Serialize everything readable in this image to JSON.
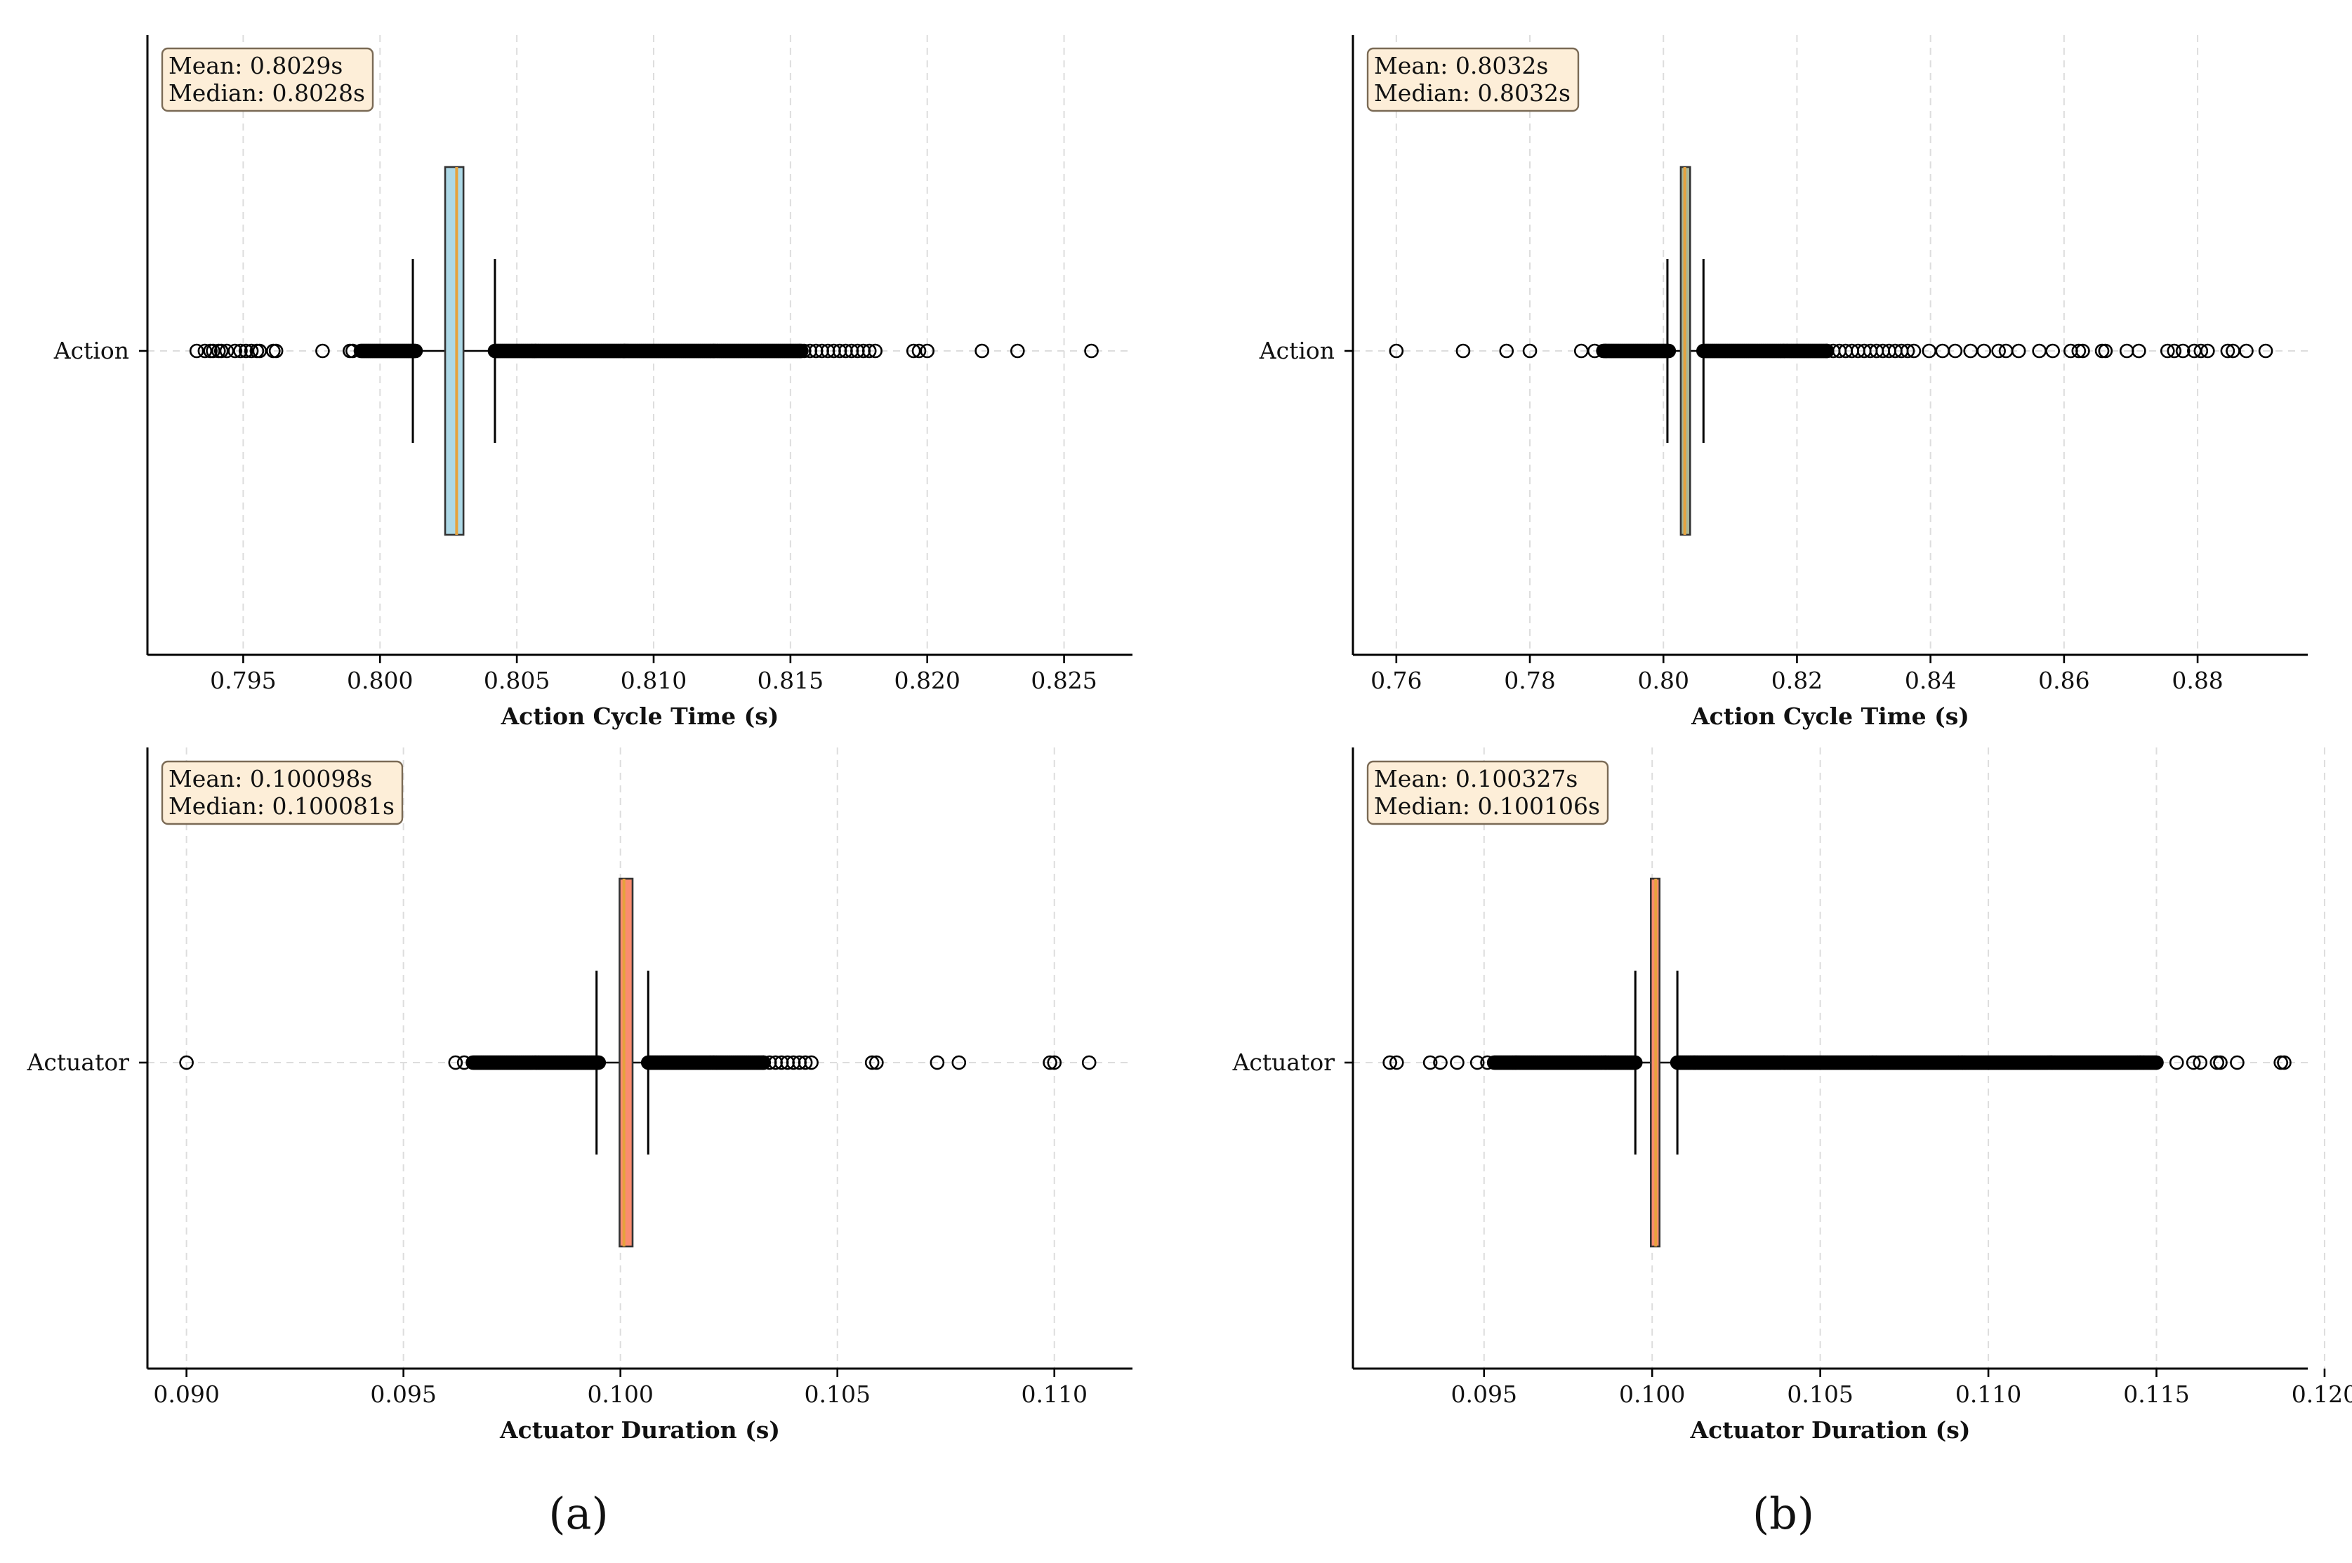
{
  "figure": {
    "panel_labels": [
      "(a)",
      "(b)"
    ]
  },
  "colors": {
    "box_action_a": "#add8e6",
    "box_action_b": "#a8b89a",
    "box_actuator": "#fa8c70",
    "median_line": "#e6a23c",
    "stats_box_fill": "#fdeed8",
    "stats_box_edge": "#7a6a55",
    "grid": "#dddddd",
    "axis": "#000000"
  },
  "chart_data": [
    {
      "id": "a-action",
      "type": "boxplot",
      "panel": "(a)",
      "category": "Action",
      "xlabel": "Action Cycle Time (s)",
      "xlim": [
        0.7915,
        0.8275
      ],
      "xticks": [
        0.795,
        0.8,
        0.805,
        0.81,
        0.815,
        0.82,
        0.825
      ],
      "xtick_labels": [
        "0.795",
        "0.800",
        "0.805",
        "0.810",
        "0.815",
        "0.820",
        "0.825"
      ],
      "grid": true,
      "stats_text": {
        "mean": "Mean: 0.8029s",
        "median": "Median: 0.8028s"
      },
      "box": {
        "whisker_low": 0.8012,
        "q1": 0.80238,
        "median": 0.8028,
        "mean": 0.8029,
        "q3": 0.80305,
        "whisker_high": 0.8042
      },
      "box_color_key": "box_action_a",
      "outliers": [
        0.7933,
        0.7936,
        0.7938,
        0.7939,
        0.7941,
        0.7942,
        0.7944,
        0.7947,
        0.7949,
        0.7951,
        0.7953,
        0.7955,
        0.7956,
        0.7961,
        0.7962,
        0.7979,
        0.7989,
        0.799,
        0.82,
        0.8197,
        0.8195,
        0.822,
        0.8233,
        0.826
      ],
      "outlier_dense_ranges": [
        [
          0.7993,
          0.8013
        ],
        [
          0.8042,
          0.8154
        ]
      ],
      "outlier_sparse_ranges": [
        [
          0.8155,
          0.8181
        ]
      ]
    },
    {
      "id": "b-action",
      "type": "boxplot",
      "panel": "(b)",
      "category": "Action",
      "xlabel": "Action Cycle Time (s)",
      "xlim": [
        0.7535,
        0.8965
      ],
      "xticks": [
        0.76,
        0.78,
        0.8,
        0.82,
        0.84,
        0.86,
        0.88
      ],
      "xtick_labels": [
        "0.76",
        "0.78",
        "0.80",
        "0.82",
        "0.84",
        "0.86",
        "0.88"
      ],
      "grid": true,
      "stats_text": {
        "mean": "Mean: 0.8032s",
        "median": "Median: 0.8032s"
      },
      "box": {
        "whisker_low": 0.8006,
        "q1": 0.8026,
        "median": 0.8032,
        "mean": 0.8032,
        "q3": 0.804,
        "whisker_high": 0.806
      },
      "box_color_key": "box_action_b",
      "outliers": [
        0.76,
        0.77,
        0.7765,
        0.78,
        0.7877,
        0.7897,
        0.8398,
        0.8418,
        0.8437,
        0.846,
        0.848,
        0.8502,
        0.8513,
        0.8532,
        0.8563,
        0.8583,
        0.861,
        0.8622,
        0.8628,
        0.8657,
        0.8662,
        0.8694,
        0.8712,
        0.8755,
        0.8765,
        0.8778,
        0.8795,
        0.8805,
        0.8815,
        0.8845,
        0.8853,
        0.8873,
        0.8902
      ],
      "outlier_dense_ranges": [
        [
          0.791,
          0.8008
        ],
        [
          0.806,
          0.8245
        ]
      ],
      "outlier_sparse_ranges": [
        [
          0.8245,
          0.8375
        ]
      ]
    },
    {
      "id": "a-actuator",
      "type": "boxplot",
      "panel": "(a)",
      "category": "Actuator",
      "xlabel": "Actuator Duration (s)",
      "xlim": [
        0.0891,
        0.1118
      ],
      "xticks": [
        0.09,
        0.095,
        0.1,
        0.105,
        0.11
      ],
      "xtick_labels": [
        "0.090",
        "0.095",
        "0.100",
        "0.105",
        "0.110"
      ],
      "grid": true,
      "stats_text": {
        "mean": "Mean: 0.100098s",
        "median": "Median: 0.100081s"
      },
      "box": {
        "whisker_low": 0.09945,
        "q1": 0.09998,
        "median": 0.100081,
        "mean": 0.100098,
        "q3": 0.10028,
        "whisker_high": 0.10064
      },
      "box_color_key": "box_actuator",
      "outliers": [
        0.09,
        0.0962,
        0.0964,
        0.1058,
        0.1059,
        0.1073,
        0.1078,
        0.1099,
        0.11,
        0.1108
      ],
      "outlier_dense_ranges": [
        [
          0.0966,
          0.0995
        ],
        [
          0.10064,
          0.1033
        ]
      ],
      "outlier_sparse_ranges": [
        [
          0.1033,
          0.1044
        ]
      ]
    },
    {
      "id": "b-actuator",
      "type": "boxplot",
      "panel": "(b)",
      "category": "Actuator",
      "xlabel": "Actuator Duration (s)",
      "xlim": [
        0.0911,
        0.1195
      ],
      "xticks": [
        0.095,
        0.1,
        0.105,
        0.11,
        0.115,
        0.12
      ],
      "xtick_labels": [
        "0.095",
        "0.100",
        "0.105",
        "0.110",
        "0.115",
        "0.120"
      ],
      "grid": true,
      "stats_text": {
        "mean": "Mean: 0.100327s",
        "median": "Median: 0.100106s"
      },
      "box": {
        "whisker_low": 0.0995,
        "q1": 0.09996,
        "median": 0.100106,
        "mean": 0.100327,
        "q3": 0.10022,
        "whisker_high": 0.10075
      },
      "box_color_key": "box_actuator",
      "outliers": [
        0.0922,
        0.0924,
        0.0934,
        0.0937,
        0.0942,
        0.0948,
        0.0951,
        0.1156,
        0.1161,
        0.1163,
        0.1168,
        0.1169,
        0.1174,
        0.1187,
        0.1188
      ],
      "outlier_dense_ranges": [
        [
          0.0953,
          0.0995
        ],
        [
          0.10075,
          0.115
        ]
      ],
      "outlier_sparse_ranges": []
    }
  ]
}
